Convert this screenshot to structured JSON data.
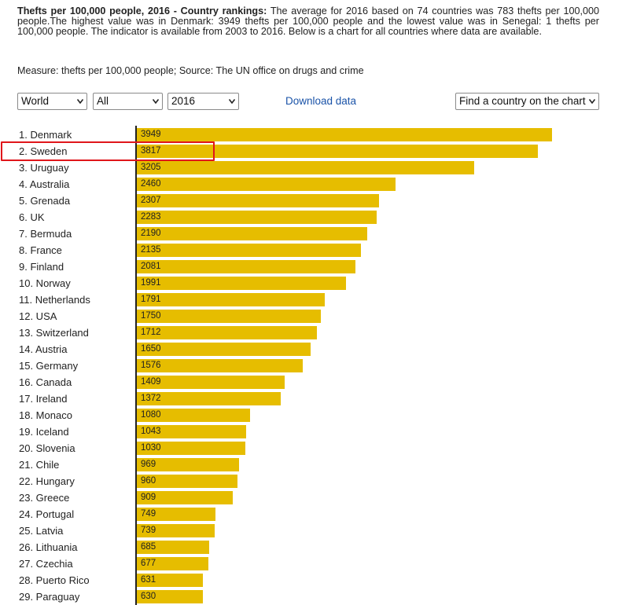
{
  "intro": {
    "title": "Thefts per 100,000 people, 2016 - Country rankings:",
    "text": "The average for 2016 based on 74 countries was 783 thefts per 100,000 people.The highest value was in Denmark: 3949 thefts per 100,000 people and the lowest value was in Senegal: 1 thefts per 100,000 people. The indicator is available from 2003 to 2016. Below is a chart for all countries where data are available.",
    "measure": "Measure: thefts per 100,000 people; Source: The UN office on drugs and crime"
  },
  "controls": {
    "region": "World",
    "group": "All",
    "year": "2016",
    "download_label": "Download data",
    "find_country": "Find a country on the chart"
  },
  "colors": {
    "bar": "#e6bd00",
    "highlight": "#e0161b",
    "link": "#1a53a8"
  },
  "highlighted_country": "Sweden",
  "chart_data": {
    "type": "bar",
    "orientation": "horizontal",
    "categories": [
      "1. Denmark",
      "2. Sweden",
      "3. Uruguay",
      "4. Australia",
      "5. Grenada",
      "6. UK",
      "7. Bermuda",
      "8. France",
      "9. Finland",
      "10. Norway",
      "11. Netherlands",
      "12. USA",
      "13. Switzerland",
      "14. Austria",
      "15. Germany",
      "16. Canada",
      "17. Ireland",
      "18. Monaco",
      "19. Iceland",
      "20. Slovenia",
      "21. Chile",
      "22. Hungary",
      "23. Greece",
      "24. Portugal",
      "25. Latvia",
      "26. Lithuania",
      "27. Czechia",
      "28. Puerto Rico",
      "29. Paraguay"
    ],
    "values": [
      3949,
      3817,
      3205,
      2460,
      2307,
      2283,
      2190,
      2135,
      2081,
      1991,
      1791,
      1750,
      1712,
      1650,
      1576,
      1409,
      1372,
      1080,
      1043,
      1030,
      969,
      960,
      909,
      749,
      739,
      685,
      677,
      631,
      630
    ],
    "xlim": [
      0,
      3949
    ],
    "grid": false,
    "legend": "none"
  }
}
